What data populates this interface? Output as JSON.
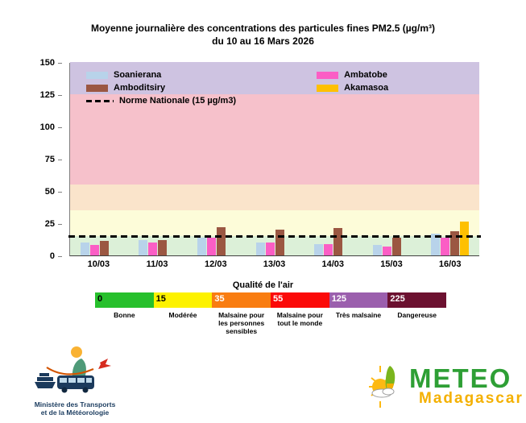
{
  "title": {
    "line1": "Moyenne journalière des concentrations des particules fines PM2.5 (µg/m³)",
    "line2": "du 10 au 16 Mars 2026"
  },
  "chart_data": {
    "type": "bar",
    "title": "Moyenne journalière des concentrations des particules fines PM2.5 (µg/m³) du 10 au 16 Mars 2026",
    "xlabel": "",
    "ylabel": "",
    "ylim": [
      0,
      150
    ],
    "yticks": [
      0,
      25,
      50,
      75,
      100,
      125,
      150
    ],
    "categories": [
      "10/03",
      "11/03",
      "12/03",
      "13/03",
      "14/03",
      "15/03",
      "16/03"
    ],
    "series": [
      {
        "name": "Soanierana",
        "color": "#B8D3EA",
        "values": [
          10,
          12,
          14,
          10,
          9,
          8,
          17
        ]
      },
      {
        "name": "Ambatobe",
        "color": "#FB5EC5",
        "values": [
          8,
          10,
          14,
          10,
          9,
          7,
          14
        ]
      },
      {
        "name": "Amboditsiry",
        "color": "#9B5742",
        "values": [
          11,
          12,
          22,
          20,
          21,
          14,
          19
        ]
      },
      {
        "name": "Akamasoa",
        "color": "#FEC002",
        "values": [
          null,
          null,
          null,
          null,
          null,
          null,
          26
        ]
      }
    ],
    "norm_line": {
      "label": "Norme Nationale (15 µg/m3)",
      "value": 15,
      "color": "#000000"
    },
    "bands": [
      {
        "from": 0,
        "to": 15,
        "color": "#DCF0D8"
      },
      {
        "from": 15,
        "to": 35,
        "color": "#FDFCD9"
      },
      {
        "from": 35,
        "to": 55,
        "color": "#FAE4CB"
      },
      {
        "from": 55,
        "to": 125,
        "color": "#F6C1CB"
      },
      {
        "from": 125,
        "to": 150,
        "color": "#CEC3E1"
      }
    ],
    "legend_position": "top-left-inside",
    "grid": false
  },
  "air_quality_scale": {
    "title": "Qualité de l'air",
    "segments": [
      {
        "threshold": "0",
        "label": "Bonne",
        "color": "#27C02C",
        "text_color": "#000000"
      },
      {
        "threshold": "15",
        "label": "Modérée",
        "color": "#FDF200",
        "text_color": "#000000"
      },
      {
        "threshold": "35",
        "label": "Malsaine pour les personnes sensibles",
        "color": "#F97D11",
        "text_color": "#FFFFFF"
      },
      {
        "threshold": "55",
        "label": "Malsaine pour tout le monde",
        "color": "#FB0A09",
        "text_color": "#FFFFFF"
      },
      {
        "threshold": "125",
        "label": "Très malsaine",
        "color": "#9B5FAD",
        "text_color": "#FFFFFF"
      },
      {
        "threshold": "225",
        "label": "Dangereuse",
        "color": "#6C1130",
        "text_color": "#FFFFFF"
      }
    ]
  },
  "footer": {
    "ministry_logo": {
      "line1": "Ministère des Transports",
      "line2": "et de la Météorologie",
      "text_color": "#1B3C5F"
    },
    "meteo_logo": {
      "line1": "METEO",
      "line2": "Madagascar",
      "line1_color": "#2E9F35",
      "line2_color": "#F4B000"
    }
  }
}
